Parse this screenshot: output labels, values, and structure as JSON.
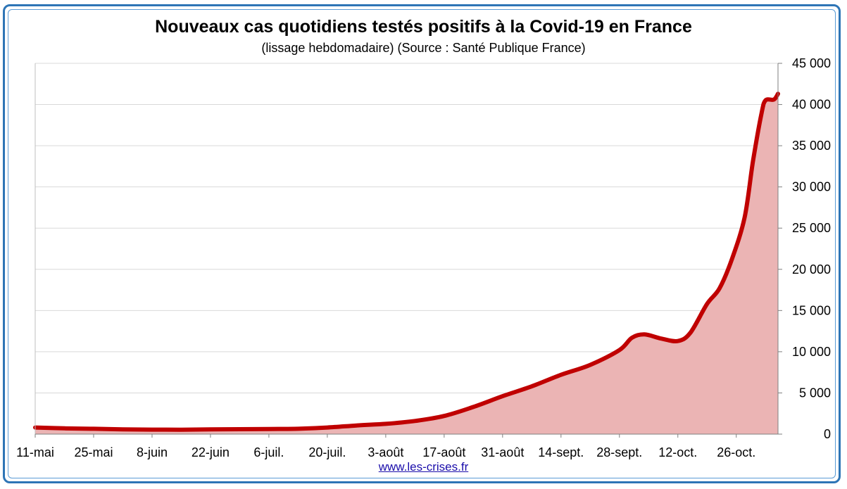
{
  "footer": {
    "link": "www.les-crises.fr"
  },
  "chart_data": {
    "type": "area",
    "title": "Nouveaux cas quotidiens testés positifs à la Covid-19 en France",
    "subtitle": "(lissage hebdomadaire) (Source : Santé Publique France)",
    "xlabel": "",
    "ylabel": "",
    "x_tick_labels": [
      "11-mai",
      "25-mai",
      "8-juin",
      "22-juin",
      "6-juil.",
      "20-juil.",
      "3-août",
      "17-août",
      "31-août",
      "14-sept.",
      "28-sept.",
      "12-oct.",
      "26-oct."
    ],
    "y_tick_labels": [
      "0",
      "5 000",
      "10 000",
      "15 000",
      "20 000",
      "25 000",
      "30 000",
      "35 000",
      "40 000",
      "45 000"
    ],
    "ylim": [
      0,
      45000
    ],
    "xlim_days": [
      0,
      175
    ],
    "y_axis_side": "right",
    "grid": true,
    "colors": {
      "line": "#c00000",
      "fill": "#ebb4b4",
      "grid": "#d9d9d9",
      "frame": "#2e75b6"
    },
    "series": [
      {
        "values": [
          [
            0,
            800
          ],
          [
            7,
            700
          ],
          [
            14,
            650
          ],
          [
            21,
            580
          ],
          [
            28,
            550
          ],
          [
            35,
            540
          ],
          [
            42,
            580
          ],
          [
            49,
            600
          ],
          [
            56,
            620
          ],
          [
            63,
            650
          ],
          [
            70,
            800
          ],
          [
            77,
            1050
          ],
          [
            84,
            1250
          ],
          [
            91,
            1600
          ],
          [
            98,
            2200
          ],
          [
            105,
            3300
          ],
          [
            112,
            4600
          ],
          [
            119,
            5800
          ],
          [
            126,
            7200
          ],
          [
            133,
            8400
          ],
          [
            140,
            10200
          ],
          [
            143,
            11700
          ],
          [
            146,
            12100
          ],
          [
            150,
            11600
          ],
          [
            154,
            11300
          ],
          [
            157,
            12300
          ],
          [
            161,
            15800
          ],
          [
            164,
            17700
          ],
          [
            167,
            21300
          ],
          [
            170,
            26300
          ],
          [
            172,
            33100
          ],
          [
            174,
            38800
          ],
          [
            175,
            40500
          ],
          [
            177,
            40600
          ],
          [
            178,
            41300
          ]
        ]
      }
    ]
  }
}
